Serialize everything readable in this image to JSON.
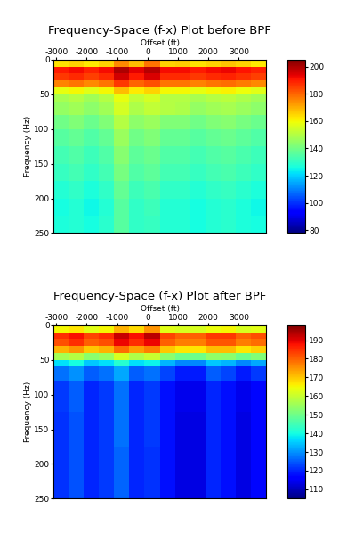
{
  "chart_data": [
    {
      "type": "heatmap",
      "title": "Frequency-Space (f-x) Plot before BPF",
      "x_label": "Offset (ft)",
      "y_label": "Frequency (Hz)",
      "xlim": [
        -3100,
        3900
      ],
      "xticks": [
        -3000,
        -2000,
        -1000,
        0,
        1000,
        2000,
        3000
      ],
      "ylim": [
        250,
        0
      ],
      "yticks": [
        0,
        50,
        100,
        150,
        200,
        250
      ],
      "x_edges": [
        -3100,
        -2600,
        -2100,
        -1600,
        -1100,
        -600,
        -100,
        400,
        900,
        1400,
        1900,
        2400,
        2900,
        3400,
        3900
      ],
      "y_edges": [
        0,
        10,
        20,
        30,
        40,
        50,
        60,
        80,
        100,
        125,
        150,
        175,
        200,
        225,
        250
      ],
      "cells": [
        [
          163,
          165,
          162,
          165,
          175,
          168,
          178,
          165,
          166,
          163,
          165,
          167,
          165,
          162
        ],
        [
          190,
          192,
          189,
          192,
          200,
          194,
          199,
          192,
          192,
          190,
          192,
          193,
          191,
          189
        ],
        [
          186,
          188,
          185,
          188,
          196,
          190,
          195,
          188,
          188,
          186,
          188,
          189,
          187,
          185
        ],
        [
          176,
          178,
          175,
          178,
          186,
          180,
          183,
          178,
          178,
          176,
          178,
          179,
          177,
          175
        ],
        [
          158,
          160,
          157,
          160,
          168,
          162,
          165,
          160,
          160,
          158,
          160,
          161,
          159,
          157
        ],
        [
          148,
          150,
          147,
          150,
          158,
          152,
          155,
          150,
          150,
          148,
          150,
          151,
          149,
          147
        ],
        [
          145,
          147,
          144,
          147,
          155,
          149,
          152,
          150,
          149,
          145,
          147,
          148,
          146,
          144
        ],
        [
          140,
          142,
          139,
          142,
          150,
          144,
          146,
          142,
          142,
          140,
          142,
          143,
          141,
          139
        ],
        [
          136,
          138,
          135,
          138,
          146,
          140,
          142,
          138,
          138,
          136,
          138,
          139,
          137,
          135
        ],
        [
          133,
          135,
          132,
          135,
          143,
          137,
          139,
          135,
          135,
          133,
          135,
          136,
          134,
          132
        ],
        [
          131,
          133,
          130,
          133,
          141,
          135,
          137,
          133,
          133,
          131,
          133,
          134,
          132,
          130
        ],
        [
          128,
          130,
          127,
          130,
          138,
          132,
          134,
          130,
          130,
          128,
          130,
          131,
          129,
          127
        ],
        [
          126,
          128,
          125,
          128,
          136,
          130,
          132,
          128,
          128,
          126,
          128,
          129,
          127,
          125
        ],
        [
          127,
          128,
          126,
          129,
          136,
          130,
          131,
          128,
          128,
          126,
          128,
          129,
          127,
          126
        ]
      ],
      "clim": [
        78,
        205
      ],
      "cticks": [
        80,
        100,
        120,
        140,
        160,
        180,
        200
      ]
    },
    {
      "type": "heatmap",
      "title": "Frequency-Space (f-x) Plot after BPF",
      "x_label": "Offset (ft)",
      "y_label": "Frequency (Hz)",
      "xlim": [
        -3100,
        3900
      ],
      "xticks": [
        -3000,
        -2000,
        -1000,
        0,
        1000,
        2000,
        3000
      ],
      "ylim": [
        250,
        0
      ],
      "yticks": [
        0,
        50,
        100,
        150,
        200,
        250
      ],
      "x_edges": [
        -3100,
        -2600,
        -2100,
        -1600,
        -1100,
        -600,
        -100,
        400,
        900,
        1400,
        1900,
        2400,
        2900,
        3400,
        3900
      ],
      "y_edges": [
        0,
        10,
        20,
        30,
        40,
        50,
        60,
        80,
        100,
        125,
        150,
        175,
        200,
        225,
        250
      ],
      "cells": [
        [
          165,
          167,
          163,
          165,
          172,
          168,
          175,
          163,
          162,
          162,
          164,
          165,
          162,
          163
        ],
        [
          185,
          188,
          183,
          185,
          192,
          188,
          193,
          183,
          180,
          180,
          184,
          184,
          180,
          182
        ],
        [
          182,
          185,
          180,
          182,
          189,
          185,
          189,
          180,
          177,
          177,
          181,
          181,
          177,
          179
        ],
        [
          172,
          175,
          170,
          172,
          179,
          174,
          177,
          170,
          167,
          167,
          171,
          171,
          167,
          169
        ],
        [
          156,
          158,
          153,
          155,
          162,
          157,
          160,
          153,
          150,
          150,
          154,
          153,
          150,
          152
        ],
        [
          137,
          140,
          135,
          137,
          142,
          137,
          139,
          133,
          129,
          129,
          135,
          133,
          129,
          132
        ],
        [
          127,
          130,
          125,
          127,
          132,
          125,
          127,
          123,
          119,
          119,
          125,
          123,
          119,
          122
        ],
        [
          122,
          125,
          120,
          122,
          127,
          120,
          122,
          118,
          114,
          114,
          120,
          118,
          114,
          117
        ],
        [
          122,
          125,
          120,
          122,
          127,
          120,
          122,
          118,
          114,
          114,
          120,
          118,
          114,
          117
        ],
        [
          121,
          124,
          120,
          122,
          127,
          120,
          122,
          118,
          113,
          113,
          120,
          118,
          113,
          117
        ],
        [
          121,
          124,
          120,
          122,
          127,
          120,
          122,
          118,
          113,
          113,
          120,
          118,
          113,
          117
        ],
        [
          121,
          124,
          120,
          122,
          126,
          120,
          121,
          118,
          113,
          113,
          120,
          118,
          113,
          117
        ],
        [
          121,
          124,
          120,
          122,
          126,
          120,
          121,
          118,
          113,
          113,
          120,
          118,
          113,
          117
        ],
        [
          121,
          124,
          120,
          122,
          126,
          120,
          121,
          118,
          113,
          113,
          120,
          118,
          113,
          117
        ]
      ],
      "clim": [
        105,
        198
      ],
      "cticks": [
        110,
        120,
        130,
        140,
        150,
        160,
        170,
        180,
        190
      ]
    }
  ]
}
